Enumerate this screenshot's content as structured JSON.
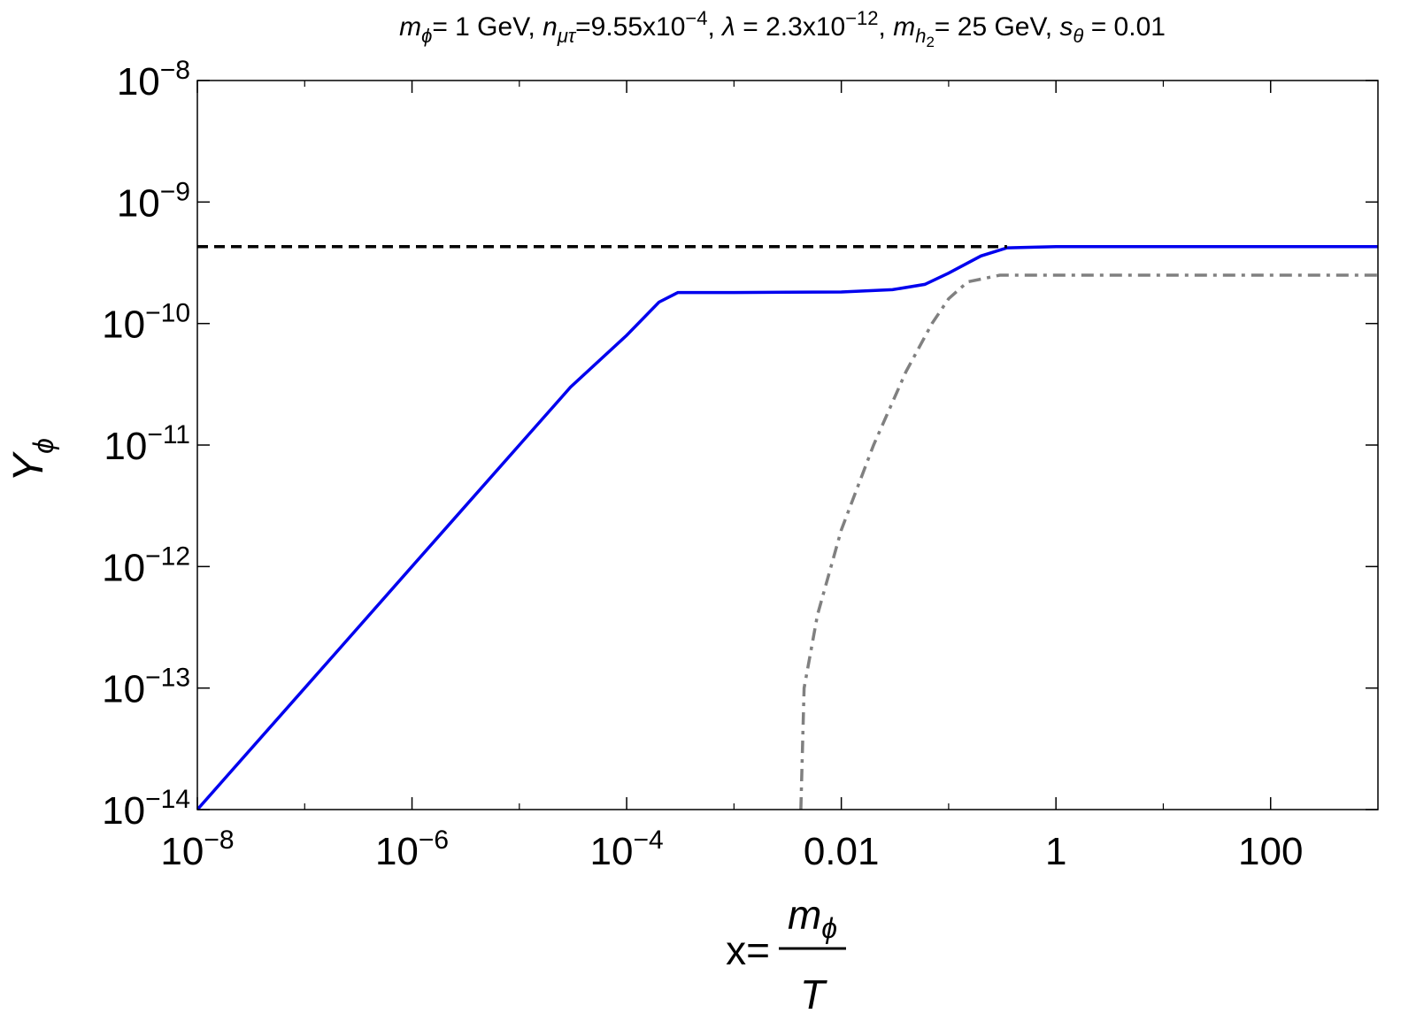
{
  "chart_data": {
    "type": "line",
    "title": [
      "m",
      "ϕ",
      "= 1 GeV, ",
      "n",
      "μτ",
      "=9.55x10",
      "−4",
      ", ",
      "λ",
      " = 2.3x10",
      "−12",
      ", ",
      "m",
      "h",
      "2",
      "= 25 GeV, ",
      "s",
      "θ",
      " = 0.01"
    ],
    "y_label": [
      "Y",
      "ϕ"
    ],
    "x_label": [
      "x=",
      "m",
      "ϕ",
      "T"
    ],
    "xlog": true,
    "ylog": true,
    "xlim": [
      1e-08,
      1000
    ],
    "ylim": [
      1e-14,
      1e-08
    ],
    "xticks": [
      {
        "value": 1e-08,
        "label": [
          "10",
          "−8"
        ]
      },
      {
        "value": 1e-06,
        "label": [
          "10",
          "−6"
        ]
      },
      {
        "value": 0.0001,
        "label": [
          "10",
          "−4"
        ]
      },
      0.01,
      1,
      100
    ],
    "xminorticks": [
      1e-07,
      1e-05,
      0.001,
      0.1,
      10
    ],
    "yticks": [
      {
        "value": 1e-14,
        "label": [
          "10",
          "−14"
        ]
      },
      {
        "value": 1e-13,
        "label": [
          "10",
          "−13"
        ]
      },
      {
        "value": 1e-12,
        "label": [
          "10",
          "−12"
        ]
      },
      {
        "value": 1e-11,
        "label": [
          "10",
          "−11"
        ]
      },
      {
        "value": 1e-10,
        "label": [
          "10",
          "−10"
        ]
      },
      {
        "value": 1e-09,
        "label": [
          "10",
          "−9"
        ]
      },
      {
        "value": 1e-08,
        "label": [
          "10",
          "−8"
        ]
      }
    ],
    "series": [
      {
        "color": "#0000ee",
        "dash": "solid",
        "x": [
          1e-08,
          1e-07,
          1e-06,
          1e-05,
          3e-05,
          0.0001,
          0.0002,
          0.0003,
          0.001,
          0.01,
          0.03,
          0.06,
          0.1,
          0.2,
          0.35,
          1,
          1000
        ],
        "values": [
          1e-14,
          1e-13,
          1e-12,
          1e-11,
          3e-11,
          8e-11,
          1.5e-10,
          1.8e-10,
          1.8e-10,
          1.82e-10,
          1.9e-10,
          2.1e-10,
          2.6e-10,
          3.6e-10,
          4.2e-10,
          4.3e-10,
          4.3e-10
        ]
      },
      {
        "color": "#808080",
        "dash": "dashdot",
        "x": [
          0.0042,
          0.0045,
          0.006,
          0.01,
          0.02,
          0.04,
          0.07,
          0.1,
          0.15,
          0.3,
          1000
        ],
        "values": [
          1e-14,
          1e-13,
          4e-13,
          2e-12,
          1e-11,
          4e-11,
          1e-10,
          1.6e-10,
          2.2e-10,
          2.5e-10,
          2.5e-10
        ]
      },
      {
        "color": "#000000",
        "dash": "dashed",
        "x": [
          1e-08,
          0.35
        ],
        "values": [
          4.3e-10,
          4.3e-10
        ]
      }
    ]
  }
}
